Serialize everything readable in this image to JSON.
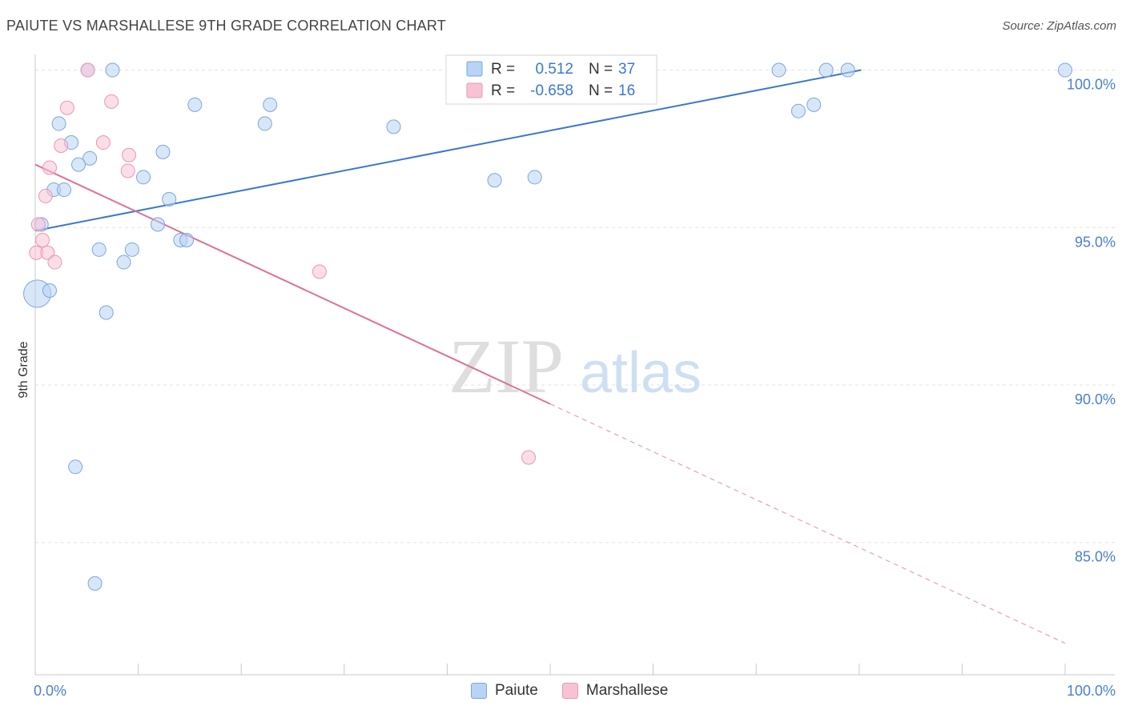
{
  "title": "PAIUTE VS MARSHALLESE 9TH GRADE CORRELATION CHART",
  "source": "Source: ZipAtlas.com",
  "watermark": {
    "zip": "ZIP",
    "atlas": "atlas"
  },
  "colors": {
    "paiute_fill": "#b8d3f3",
    "paiute_stroke": "#7aa6df",
    "paiute_line": "#3a78d0",
    "marshallese_fill": "#f7c3d3",
    "marshallese_stroke": "#eb96b2",
    "marshallese_line": "#e07098",
    "grid": "#e3e3e3",
    "axis_label": "#4a7fd1"
  },
  "chart_data": {
    "type": "scatter",
    "ylabel": "9th Grade",
    "xlim": [
      0,
      100
    ],
    "ylim": [
      80.8,
      100.7
    ],
    "x_tick_labels": [
      "0.0%",
      "100.0%"
    ],
    "y_ticks": [
      85,
      90,
      95,
      100
    ],
    "y_tick_labels": [
      "85.0%",
      "90.0%",
      "95.0%",
      "100.0%"
    ],
    "grid": true,
    "legend_top": [
      {
        "r_label": "R =",
        "r_value": "0.512",
        "n_label": "N =",
        "n_value": "37"
      },
      {
        "r_label": "R =",
        "r_value": "-0.658",
        "n_label": "N =",
        "n_value": "16"
      }
    ],
    "series": [
      {
        "name": "Paiute",
        "points": [
          [
            5.1,
            100.0
          ],
          [
            7.5,
            100.0
          ],
          [
            45.3,
            100.0
          ],
          [
            45.6,
            100.0
          ],
          [
            72.2,
            100.0
          ],
          [
            76.8,
            100.0
          ],
          [
            78.9,
            100.0
          ],
          [
            100,
            100.0
          ],
          [
            15.5,
            98.9
          ],
          [
            22.8,
            98.9
          ],
          [
            75.6,
            98.9
          ],
          [
            74.1,
            98.7
          ],
          [
            2.3,
            98.3
          ],
          [
            22.3,
            98.3
          ],
          [
            34.8,
            98.2
          ],
          [
            3.5,
            97.7
          ],
          [
            12.4,
            97.4
          ],
          [
            5.3,
            97.2
          ],
          [
            4.2,
            97.0
          ],
          [
            10.5,
            96.6
          ],
          [
            44.6,
            96.5
          ],
          [
            48.5,
            96.6
          ],
          [
            1.8,
            96.2
          ],
          [
            2.8,
            96.2
          ],
          [
            13.0,
            95.9
          ],
          [
            0.6,
            95.1
          ],
          [
            11.9,
            95.1
          ],
          [
            14.1,
            94.6
          ],
          [
            14.7,
            94.6
          ],
          [
            6.2,
            94.3
          ],
          [
            9.4,
            94.3
          ],
          [
            8.6,
            93.9
          ],
          [
            0.2,
            92.9
          ],
          [
            1.4,
            93.0
          ],
          [
            6.9,
            92.3
          ],
          [
            3.9,
            87.4
          ],
          [
            5.8,
            83.7
          ]
        ],
        "trend": [
          [
            0,
            94.9
          ],
          [
            80.2,
            100.0
          ]
        ]
      },
      {
        "name": "Marshallese",
        "points": [
          [
            5.1,
            100.0
          ],
          [
            7.4,
            99.0
          ],
          [
            3.1,
            98.8
          ],
          [
            2.5,
            97.6
          ],
          [
            6.6,
            97.7
          ],
          [
            9.1,
            97.3
          ],
          [
            1.4,
            96.9
          ],
          [
            9.0,
            96.8
          ],
          [
            1.0,
            96.0
          ],
          [
            0.3,
            95.1
          ],
          [
            0.7,
            94.6
          ],
          [
            0.1,
            94.2
          ],
          [
            1.2,
            94.2
          ],
          [
            1.9,
            93.9
          ],
          [
            27.6,
            93.6
          ],
          [
            47.9,
            87.7
          ]
        ],
        "trend": [
          [
            0,
            97.0
          ],
          [
            50,
            89.4
          ]
        ],
        "trend_extension": [
          [
            50,
            89.4
          ],
          [
            100,
            81.8
          ]
        ]
      }
    ]
  }
}
